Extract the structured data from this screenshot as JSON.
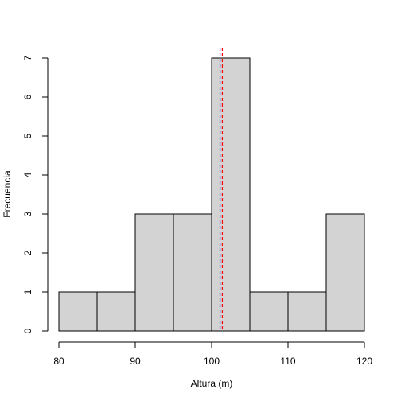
{
  "chart_data": {
    "type": "bar",
    "title": "",
    "xlabel": "Altura (m)",
    "ylabel": "Frecuencia",
    "bins": [
      {
        "start": 80,
        "end": 85,
        "count": 1
      },
      {
        "start": 85,
        "end": 90,
        "count": 1
      },
      {
        "start": 90,
        "end": 95,
        "count": 3
      },
      {
        "start": 95,
        "end": 100,
        "count": 3
      },
      {
        "start": 100,
        "end": 105,
        "count": 7
      },
      {
        "start": 105,
        "end": 110,
        "count": 1
      },
      {
        "start": 110,
        "end": 115,
        "count": 1
      },
      {
        "start": 115,
        "end": 120,
        "count": 3
      }
    ],
    "xlim": [
      80,
      120
    ],
    "ylim": [
      0,
      7
    ],
    "x_ticks": [
      80,
      90,
      100,
      110,
      120
    ],
    "y_ticks": [
      0,
      1,
      2,
      3,
      4,
      5,
      6,
      7
    ],
    "grid": false,
    "reference_lines": [
      {
        "x": 101.1,
        "color": "#0000ff",
        "style": "dashed"
      },
      {
        "x": 101.4,
        "color": "#ff0000",
        "style": "dashed"
      }
    ],
    "colors": {
      "bar_fill": "#d3d3d3",
      "bar_stroke": "#000000",
      "axis": "#000000",
      "text": "#000000"
    }
  }
}
